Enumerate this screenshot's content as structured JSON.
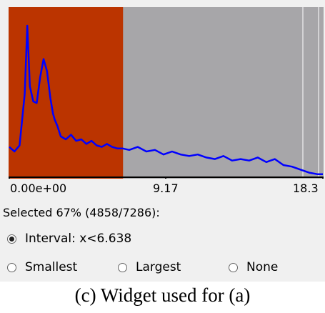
{
  "chart_data": {
    "type": "line",
    "x_ticks": [
      "0.00e+00",
      "9.17",
      "18.3"
    ],
    "xlim": [
      0,
      18.3
    ],
    "selection_max": 6.638,
    "colors": {
      "selected": "#bb3400",
      "unselected": "#a7a6a9",
      "line": "#0000ff"
    },
    "x": [
      0.0,
      0.3,
      0.6,
      0.9,
      1.05,
      1.2,
      1.4,
      1.6,
      1.8,
      2.0,
      2.2,
      2.4,
      2.55,
      2.65,
      2.8,
      3.0,
      3.3,
      3.6,
      3.9,
      4.2,
      4.5,
      4.8,
      5.1,
      5.4,
      5.7,
      6.0,
      6.3,
      6.6,
      7.0,
      7.5,
      8.0,
      8.5,
      9.0,
      9.5,
      10.0,
      10.5,
      11.0,
      11.5,
      12.0,
      12.5,
      13.0,
      13.5,
      14.0,
      14.5,
      15.0,
      15.5,
      16.0,
      16.5,
      17.0,
      17.5,
      18.0,
      18.3
    ],
    "y": [
      0.2,
      0.17,
      0.21,
      0.55,
      1.0,
      0.6,
      0.5,
      0.49,
      0.66,
      0.78,
      0.7,
      0.52,
      0.42,
      0.38,
      0.34,
      0.27,
      0.25,
      0.28,
      0.24,
      0.25,
      0.22,
      0.24,
      0.21,
      0.2,
      0.22,
      0.2,
      0.19,
      0.19,
      0.18,
      0.2,
      0.17,
      0.18,
      0.15,
      0.17,
      0.15,
      0.14,
      0.15,
      0.13,
      0.12,
      0.14,
      0.11,
      0.12,
      0.11,
      0.13,
      0.1,
      0.12,
      0.08,
      0.07,
      0.05,
      0.03,
      0.02,
      0.02
    ]
  },
  "selection_summary": "Selected 67% (4858/7286):",
  "options": {
    "interval_label": "Interval: x<6.638",
    "smallest_label": "Smallest",
    "largest_label": "Largest",
    "none_label": "None"
  },
  "caption": "(c) Widget used for (a)"
}
